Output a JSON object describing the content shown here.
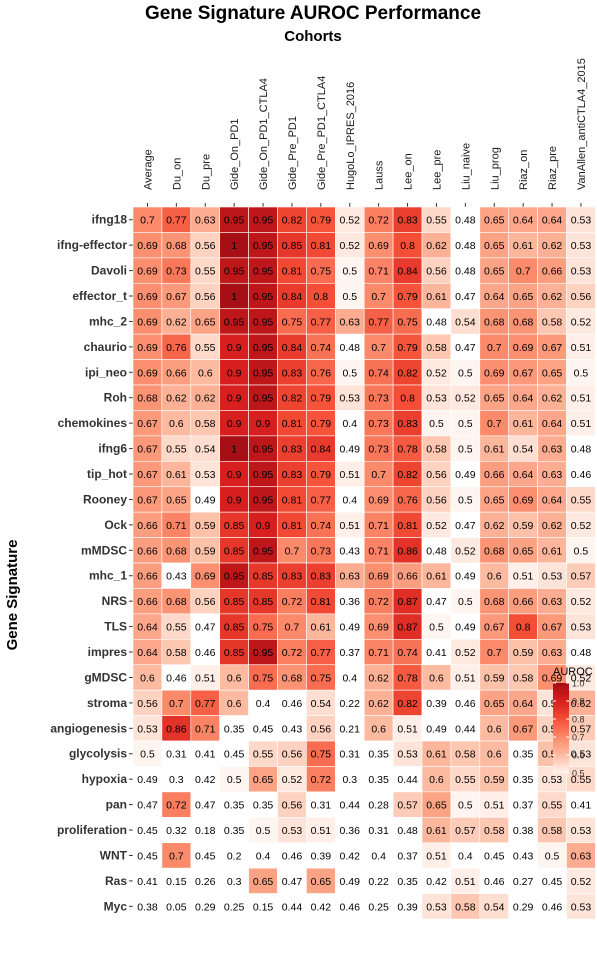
{
  "chart_data": {
    "type": "heatmap",
    "title": "Gene Signature AUROC Performance",
    "x_title": "Cohorts",
    "y_title": "Gene Signature",
    "legend_title": "AUROC",
    "legend_ticks": [
      "1.0",
      "0.9",
      "0.8",
      "0.7",
      "0.6",
      "0.5"
    ],
    "color_range": [
      0.5,
      1.0
    ],
    "low_color": "#fff5f0",
    "high_color": "#a50f15",
    "columns": [
      "Average",
      "Du_on",
      "Du_pre",
      "Gide_On_PD1",
      "Gide_On_PD1_CTLA4",
      "Gide_Pre_PD1",
      "Gide_Pre_PD1_CTLA4",
      "HugoLo_IPRES_2016",
      "Lauss",
      "Lee_on",
      "Lee_pre",
      "Liu_naive",
      "Liu_prog",
      "Riaz_on",
      "Riaz_pre",
      "VanAllen_antiCTLA4_2015"
    ],
    "rows": [
      {
        "name": "ifng18",
        "values": [
          "0.7",
          "0.77",
          "0.63",
          "0.95",
          "0.95",
          "0.82",
          "0.79",
          "0.52",
          "0.72",
          "0.83",
          "0.55",
          "0.48",
          "0.65",
          "0.64",
          "0.64",
          "0.53"
        ]
      },
      {
        "name": "ifng-effector",
        "values": [
          "0.69",
          "0.68",
          "0.56",
          "1",
          "0.95",
          "0.85",
          "0.81",
          "0.52",
          "0.69",
          "0.8",
          "0.62",
          "0.48",
          "0.65",
          "0.61",
          "0.62",
          "0.53"
        ]
      },
      {
        "name": "Davoli",
        "values": [
          "0.69",
          "0.73",
          "0.55",
          "0.95",
          "0.95",
          "0.81",
          "0.75",
          "0.5",
          "0.71",
          "0.84",
          "0.56",
          "0.48",
          "0.65",
          "0.7",
          "0.66",
          "0.53"
        ]
      },
      {
        "name": "effector_t",
        "values": [
          "0.69",
          "0.67",
          "0.56",
          "1",
          "0.95",
          "0.84",
          "0.8",
          "0.5",
          "0.7",
          "0.79",
          "0.61",
          "0.47",
          "0.64",
          "0.65",
          "0.62",
          "0.56"
        ]
      },
      {
        "name": "mhc_2",
        "values": [
          "0.69",
          "0.62",
          "0.65",
          "0.95",
          "0.95",
          "0.75",
          "0.77",
          "0.63",
          "0.77",
          "0.75",
          "0.48",
          "0.54",
          "0.68",
          "0.68",
          "0.58",
          "0.52"
        ]
      },
      {
        "name": "chaurio",
        "values": [
          "0.69",
          "0.76",
          "0.55",
          "0.9",
          "0.95",
          "0.84",
          "0.74",
          "0.48",
          "0.7",
          "0.79",
          "0.58",
          "0.47",
          "0.7",
          "0.69",
          "0.67",
          "0.51"
        ]
      },
      {
        "name": "ipi_neo",
        "values": [
          "0.69",
          "0.66",
          "0.6",
          "0.9",
          "0.95",
          "0.83",
          "0.76",
          "0.5",
          "0.74",
          "0.82",
          "0.52",
          "0.5",
          "0.69",
          "0.67",
          "0.65",
          "0.5"
        ]
      },
      {
        "name": "Roh",
        "values": [
          "0.68",
          "0.62",
          "0.62",
          "0.9",
          "0.95",
          "0.82",
          "0.79",
          "0.53",
          "0.73",
          "0.8",
          "0.53",
          "0.52",
          "0.65",
          "0.64",
          "0.62",
          "0.51"
        ]
      },
      {
        "name": "chemokines",
        "values": [
          "0.67",
          "0.6",
          "0.58",
          "0.9",
          "0.9",
          "0.81",
          "0.79",
          "0.4",
          "0.73",
          "0.83",
          "0.5",
          "0.5",
          "0.7",
          "0.61",
          "0.64",
          "0.51"
        ]
      },
      {
        "name": "ifng6",
        "values": [
          "0.67",
          "0.55",
          "0.54",
          "1",
          "0.95",
          "0.83",
          "0.84",
          "0.49",
          "0.73",
          "0.78",
          "0.58",
          "0.5",
          "0.61",
          "0.54",
          "0.63",
          "0.48"
        ]
      },
      {
        "name": "tip_hot",
        "values": [
          "0.67",
          "0.61",
          "0.53",
          "0.9",
          "0.95",
          "0.83",
          "0.79",
          "0.51",
          "0.7",
          "0.82",
          "0.56",
          "0.49",
          "0.66",
          "0.64",
          "0.63",
          "0.46"
        ]
      },
      {
        "name": "Rooney",
        "values": [
          "0.67",
          "0.65",
          "0.49",
          "0.9",
          "0.95",
          "0.81",
          "0.77",
          "0.4",
          "0.69",
          "0.76",
          "0.56",
          "0.5",
          "0.65",
          "0.69",
          "0.64",
          "0.55"
        ]
      },
      {
        "name": "Ock",
        "values": [
          "0.66",
          "0.71",
          "0.59",
          "0.85",
          "0.9",
          "0.81",
          "0.74",
          "0.51",
          "0.71",
          "0.81",
          "0.52",
          "0.47",
          "0.62",
          "0.59",
          "0.62",
          "0.52"
        ]
      },
      {
        "name": "mMDSC",
        "values": [
          "0.66",
          "0.68",
          "0.59",
          "0.85",
          "0.95",
          "0.7",
          "0.73",
          "0.43",
          "0.71",
          "0.86",
          "0.48",
          "0.52",
          "0.68",
          "0.65",
          "0.61",
          "0.5"
        ]
      },
      {
        "name": "mhc_1",
        "values": [
          "0.66",
          "0.43",
          "0.69",
          "0.95",
          "0.85",
          "0.83",
          "0.83",
          "0.63",
          "0.69",
          "0.66",
          "0.61",
          "0.49",
          "0.6",
          "0.51",
          "0.53",
          "0.57"
        ]
      },
      {
        "name": "NRS",
        "values": [
          "0.66",
          "0.68",
          "0.56",
          "0.85",
          "0.85",
          "0.72",
          "0.81",
          "0.36",
          "0.72",
          "0.87",
          "0.47",
          "0.5",
          "0.68",
          "0.66",
          "0.63",
          "0.52"
        ]
      },
      {
        "name": "TLS",
        "values": [
          "0.64",
          "0.55",
          "0.47",
          "0.85",
          "0.75",
          "0.7",
          "0.61",
          "0.49",
          "0.69",
          "0.87",
          "0.5",
          "0.49",
          "0.67",
          "0.8",
          "0.67",
          "0.53"
        ]
      },
      {
        "name": "impres",
        "values": [
          "0.64",
          "0.58",
          "0.46",
          "0.85",
          "0.95",
          "0.72",
          "0.77",
          "0.37",
          "0.71",
          "0.74",
          "0.41",
          "0.52",
          "0.7",
          "0.59",
          "0.63",
          "0.48"
        ]
      },
      {
        "name": "gMDSC",
        "values": [
          "0.6",
          "0.46",
          "0.51",
          "0.6",
          "0.75",
          "0.68",
          "0.75",
          "0.4",
          "0.62",
          "0.78",
          "0.6",
          "0.51",
          "0.59",
          "0.58",
          "0.69",
          "0.52"
        ]
      },
      {
        "name": "stroma",
        "values": [
          "0.56",
          "0.7",
          "0.77",
          "0.6",
          "0.4",
          "0.46",
          "0.54",
          "0.22",
          "0.62",
          "0.82",
          "0.39",
          "0.46",
          "0.65",
          "0.64",
          "0.53",
          "0.62"
        ]
      },
      {
        "name": "angiogenesis",
        "values": [
          "0.53",
          "0.86",
          "0.71",
          "0.35",
          "0.45",
          "0.43",
          "0.56",
          "0.21",
          "0.6",
          "0.51",
          "0.49",
          "0.44",
          "0.6",
          "0.67",
          "0.56",
          "0.57"
        ]
      },
      {
        "name": "glycolysis",
        "values": [
          "0.5",
          "0.31",
          "0.41",
          "0.45",
          "0.55",
          "0.56",
          "0.75",
          "0.31",
          "0.35",
          "0.53",
          "0.61",
          "0.58",
          "0.6",
          "0.35",
          "0.59",
          "0.53"
        ]
      },
      {
        "name": "hypoxia",
        "values": [
          "0.49",
          "0.3",
          "0.42",
          "0.5",
          "0.65",
          "0.52",
          "0.72",
          "0.3",
          "0.35",
          "0.44",
          "0.6",
          "0.55",
          "0.59",
          "0.35",
          "0.53",
          "0.55"
        ]
      },
      {
        "name": "pan",
        "values": [
          "0.47",
          "0.72",
          "0.47",
          "0.35",
          "0.35",
          "0.56",
          "0.31",
          "0.44",
          "0.28",
          "0.57",
          "0.65",
          "0.5",
          "0.51",
          "0.37",
          "0.55",
          "0.41"
        ]
      },
      {
        "name": "proliferation",
        "values": [
          "0.45",
          "0.32",
          "0.18",
          "0.35",
          "0.5",
          "0.53",
          "0.51",
          "0.36",
          "0.31",
          "0.48",
          "0.61",
          "0.57",
          "0.58",
          "0.38",
          "0.58",
          "0.53"
        ]
      },
      {
        "name": "WNT",
        "values": [
          "0.45",
          "0.7",
          "0.45",
          "0.2",
          "0.4",
          "0.46",
          "0.39",
          "0.42",
          "0.4",
          "0.37",
          "0.51",
          "0.4",
          "0.45",
          "0.43",
          "0.5",
          "0.63"
        ]
      },
      {
        "name": "Ras",
        "values": [
          "0.41",
          "0.15",
          "0.26",
          "0.3",
          "0.65",
          "0.47",
          "0.65",
          "0.49",
          "0.22",
          "0.35",
          "0.42",
          "0.51",
          "0.46",
          "0.27",
          "0.45",
          "0.52"
        ]
      },
      {
        "name": "Myc",
        "values": [
          "0.38",
          "0.05",
          "0.29",
          "0.25",
          "0.15",
          "0.44",
          "0.42",
          "0.46",
          "0.25",
          "0.39",
          "0.53",
          "0.58",
          "0.54",
          "0.29",
          "0.46",
          "0.53"
        ]
      }
    ]
  }
}
